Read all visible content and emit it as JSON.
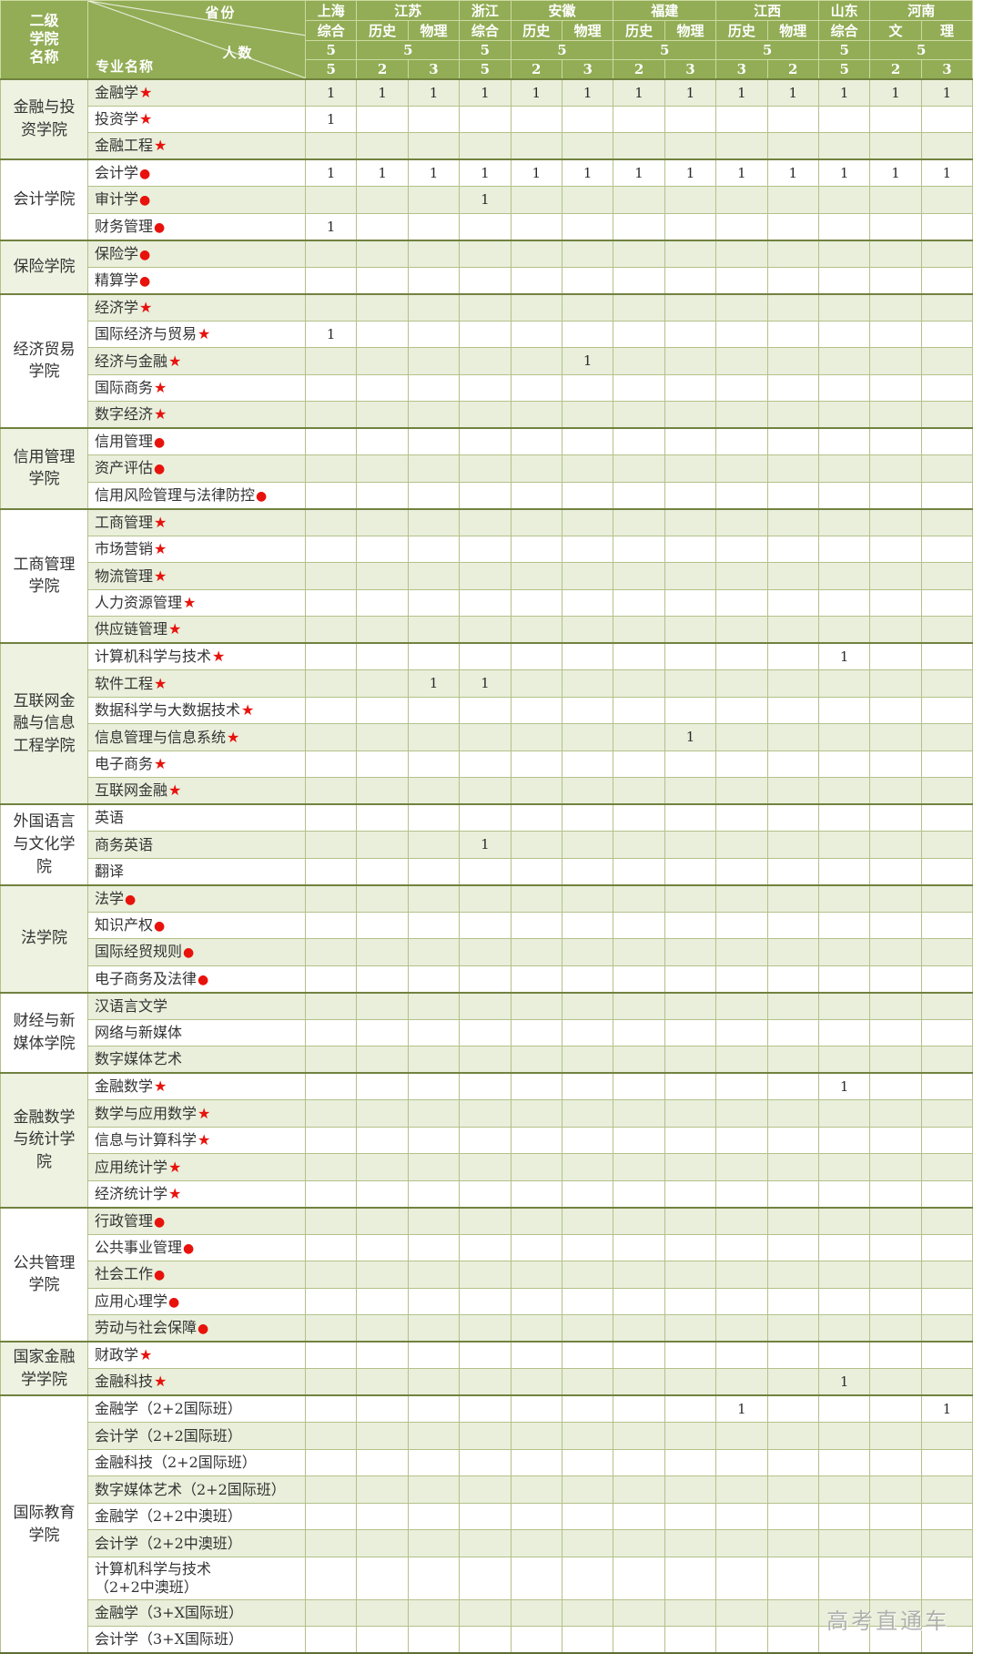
{
  "corner": {
    "college_header": "二级\n学院\n名称",
    "province_label": "省份",
    "count_label": "人数",
    "major_label": "专业名称"
  },
  "colors": {
    "header_bg": "#92ad55",
    "row_alt_bg": "#e9efdb",
    "college_alt_bg": "#edf2e1",
    "grid_line": "#b3c189",
    "section_border": "#71823f",
    "mark_red": "#e8120c",
    "watermark_gray": "#a2a2a2"
  },
  "provinces": [
    {
      "name": "上海",
      "total": "5",
      "subjects": [
        {
          "label": "综合",
          "count": "5",
          "key": "sh"
        }
      ]
    },
    {
      "name": "江苏",
      "total": "5",
      "subjects": [
        {
          "label": "历史",
          "count": "2",
          "key": "js_hist"
        },
        {
          "label": "物理",
          "count": "3",
          "key": "js_phys"
        }
      ]
    },
    {
      "name": "浙江",
      "total": "5",
      "subjects": [
        {
          "label": "综合",
          "count": "5",
          "key": "zj"
        }
      ]
    },
    {
      "name": "安徽",
      "total": "5",
      "subjects": [
        {
          "label": "历史",
          "count": "2",
          "key": "ah_hist"
        },
        {
          "label": "物理",
          "count": "3",
          "key": "ah_phys"
        }
      ]
    },
    {
      "name": "福建",
      "total": "5",
      "subjects": [
        {
          "label": "历史",
          "count": "2",
          "key": "fj_hist"
        },
        {
          "label": "物理",
          "count": "3",
          "key": "fj_phys"
        }
      ]
    },
    {
      "name": "江西",
      "total": "5",
      "subjects": [
        {
          "label": "历史",
          "count": "3",
          "key": "jx_hist"
        },
        {
          "label": "物理",
          "count": "2",
          "key": "jx_phys"
        }
      ]
    },
    {
      "name": "山东",
      "total": "5",
      "subjects": [
        {
          "label": "综合",
          "count": "5",
          "key": "sd"
        }
      ]
    },
    {
      "name": "河南",
      "total": "5",
      "subjects": [
        {
          "label": "文",
          "count": "2",
          "key": "hn_wen"
        },
        {
          "label": "理",
          "count": "3",
          "key": "hn_li"
        }
      ]
    }
  ],
  "sections": [
    {
      "college": "金融与投资学院",
      "rows": [
        {
          "major": "金融学",
          "mark": "★",
          "values": {
            "sh": "1",
            "js_hist": "1",
            "js_phys": "1",
            "zj": "1",
            "ah_hist": "1",
            "ah_phys": "1",
            "fj_hist": "1",
            "fj_phys": "1",
            "jx_hist": "1",
            "jx_phys": "1",
            "sd": "1",
            "hn_wen": "1",
            "hn_li": "1"
          }
        },
        {
          "major": "投资学",
          "mark": "★",
          "values": {
            "sh": "1"
          }
        },
        {
          "major": "金融工程",
          "mark": "★",
          "values": {}
        }
      ]
    },
    {
      "college": "会计学院",
      "rows": [
        {
          "major": "会计学",
          "mark": "●",
          "values": {
            "sh": "1",
            "js_hist": "1",
            "js_phys": "1",
            "zj": "1",
            "ah_hist": "1",
            "ah_phys": "1",
            "fj_hist": "1",
            "fj_phys": "1",
            "jx_hist": "1",
            "jx_phys": "1",
            "sd": "1",
            "hn_wen": "1",
            "hn_li": "1"
          }
        },
        {
          "major": "审计学",
          "mark": "●",
          "values": {
            "zj": "1"
          }
        },
        {
          "major": "财务管理",
          "mark": "●",
          "values": {
            "sh": "1"
          }
        }
      ]
    },
    {
      "college": "保险学院",
      "rows": [
        {
          "major": "保险学",
          "mark": "●",
          "values": {}
        },
        {
          "major": "精算学",
          "mark": "●",
          "values": {}
        }
      ]
    },
    {
      "college": "经济贸易学院",
      "rows": [
        {
          "major": "经济学",
          "mark": "★",
          "values": {}
        },
        {
          "major": "国际经济与贸易",
          "mark": "★",
          "values": {
            "sh": "1"
          }
        },
        {
          "major": "经济与金融",
          "mark": "★",
          "values": {
            "ah_phys": "1"
          }
        },
        {
          "major": "国际商务",
          "mark": "★",
          "values": {}
        },
        {
          "major": "数字经济",
          "mark": "★",
          "values": {}
        }
      ]
    },
    {
      "college": "信用管理学院",
      "rows": [
        {
          "major": "信用管理",
          "mark": "●",
          "values": {}
        },
        {
          "major": "资产评估",
          "mark": "●",
          "values": {}
        },
        {
          "major": "信用风险管理与法律防控",
          "mark": "●",
          "values": {}
        }
      ]
    },
    {
      "college": "工商管理学院",
      "rows": [
        {
          "major": "工商管理",
          "mark": "★",
          "values": {}
        },
        {
          "major": "市场营销",
          "mark": "★",
          "values": {}
        },
        {
          "major": "物流管理",
          "mark": "★",
          "values": {}
        },
        {
          "major": "人力资源管理",
          "mark": "★",
          "values": {}
        },
        {
          "major": "供应链管理",
          "mark": "★",
          "values": {}
        }
      ]
    },
    {
      "college": "互联网金融与信息工程学院",
      "rows": [
        {
          "major": "计算机科学与技术",
          "mark": "★",
          "values": {
            "sd": "1"
          }
        },
        {
          "major": "软件工程",
          "mark": "★",
          "values": {
            "js_phys": "1",
            "zj": "1"
          }
        },
        {
          "major": "数据科学与大数据技术",
          "mark": "★",
          "values": {}
        },
        {
          "major": "信息管理与信息系统",
          "mark": "★",
          "values": {
            "fj_phys": "1"
          }
        },
        {
          "major": "电子商务",
          "mark": "★",
          "values": {}
        },
        {
          "major": "互联网金融",
          "mark": "★",
          "values": {}
        }
      ]
    },
    {
      "college": "外国语言与文化学院",
      "rows": [
        {
          "major": "英语",
          "mark": "",
          "values": {}
        },
        {
          "major": "商务英语",
          "mark": "",
          "values": {
            "zj": "1"
          }
        },
        {
          "major": "翻译",
          "mark": "",
          "values": {}
        }
      ]
    },
    {
      "college": "法学院",
      "rows": [
        {
          "major": "法学",
          "mark": "●",
          "values": {}
        },
        {
          "major": "知识产权",
          "mark": "●",
          "values": {}
        },
        {
          "major": "国际经贸规则",
          "mark": "●",
          "values": {}
        },
        {
          "major": "电子商务及法律",
          "mark": "●",
          "values": {}
        }
      ]
    },
    {
      "college": "财经与新媒体学院",
      "rows": [
        {
          "major": "汉语言文学",
          "mark": "",
          "values": {}
        },
        {
          "major": "网络与新媒体",
          "mark": "",
          "values": {}
        },
        {
          "major": "数字媒体艺术",
          "mark": "",
          "values": {}
        }
      ]
    },
    {
      "college": "金融数学与统计学院",
      "rows": [
        {
          "major": "金融数学",
          "mark": "★",
          "values": {
            "sd": "1"
          }
        },
        {
          "major": "数学与应用数学",
          "mark": "★",
          "values": {}
        },
        {
          "major": "信息与计算科学",
          "mark": "★",
          "values": {}
        },
        {
          "major": "应用统计学",
          "mark": "★",
          "values": {}
        },
        {
          "major": "经济统计学",
          "mark": "★",
          "values": {}
        }
      ]
    },
    {
      "college": "公共管理学院",
      "rows": [
        {
          "major": "行政管理",
          "mark": "●",
          "values": {}
        },
        {
          "major": "公共事业管理",
          "mark": "●",
          "values": {}
        },
        {
          "major": "社会工作",
          "mark": "●",
          "values": {}
        },
        {
          "major": "应用心理学",
          "mark": "●",
          "values": {}
        },
        {
          "major": "劳动与社会保障",
          "mark": "●",
          "values": {}
        }
      ]
    },
    {
      "college": "国家金融学学院",
      "rows": [
        {
          "major": "财政学",
          "mark": "★",
          "values": {}
        },
        {
          "major": "金融科技",
          "mark": "★",
          "values": {
            "sd": "1"
          }
        }
      ]
    },
    {
      "college": "国际教育学院",
      "rows": [
        {
          "major": "金融学（2+2国际班）",
          "mark": "",
          "values": {
            "jx_hist": "1",
            "hn_li": "1"
          }
        },
        {
          "major": "会计学（2+2国际班）",
          "mark": "",
          "values": {}
        },
        {
          "major": "金融科技（2+2国际班）",
          "mark": "",
          "values": {}
        },
        {
          "major": "数字媒体艺术（2+2国际班）",
          "mark": "",
          "values": {}
        },
        {
          "major": "金融学（2+2中澳班）",
          "mark": "",
          "values": {}
        },
        {
          "major": "会计学（2+2中澳班）",
          "mark": "",
          "values": {}
        },
        {
          "major": "计算机科学与技术\n（2+2中澳班）",
          "mark": "",
          "values": {},
          "tall": true
        },
        {
          "major": "金融学（3+X国际班）",
          "mark": "",
          "values": {}
        },
        {
          "major": "会计学（3+X国际班）",
          "mark": "",
          "values": {}
        }
      ]
    }
  ],
  "watermark": "高考直通车"
}
